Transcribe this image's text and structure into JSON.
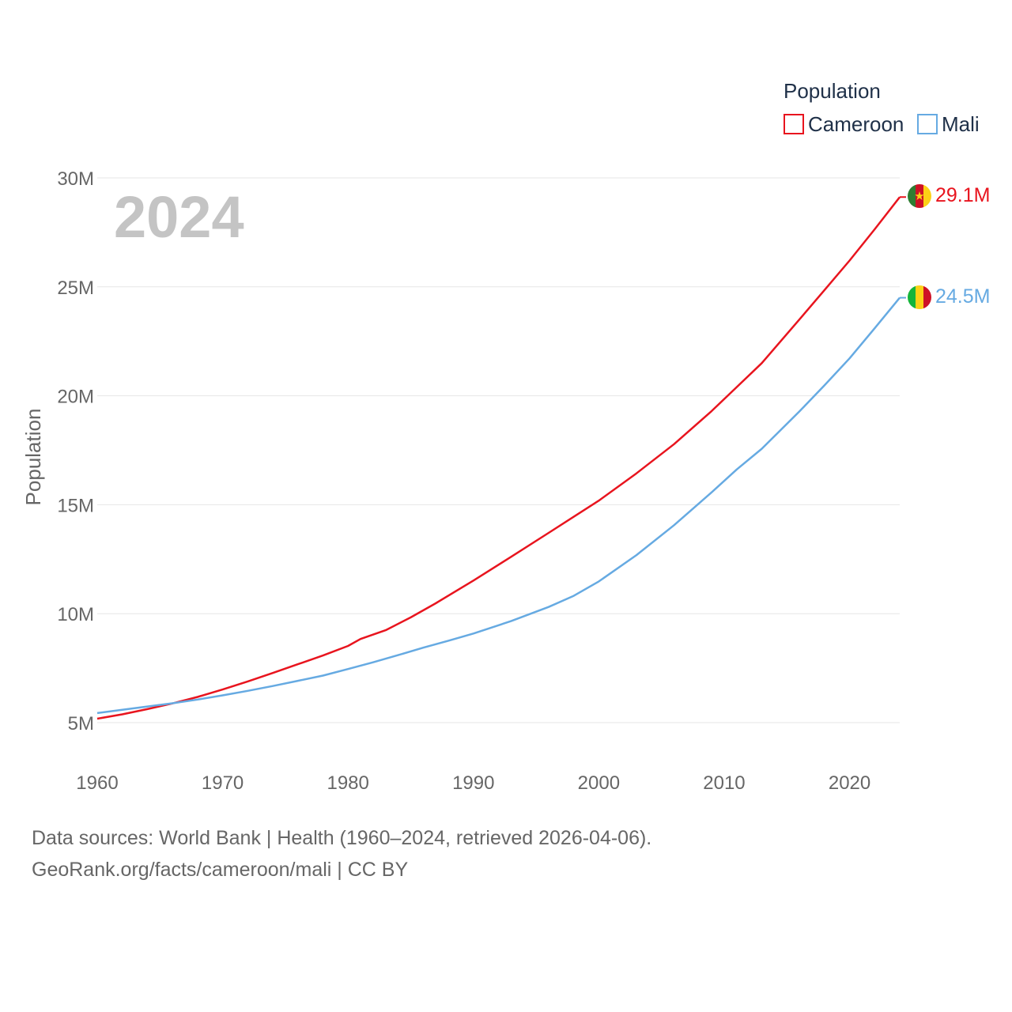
{
  "chart_data": {
    "type": "line",
    "year_label": "2024",
    "ylabel": "Population",
    "legend_title": "Population",
    "legend_position": "top-right",
    "ylim": [
      5000000,
      30000000
    ],
    "xlim": [
      1960,
      2024
    ],
    "y_ticks": [
      {
        "value": 5000000,
        "label": "5M"
      },
      {
        "value": 10000000,
        "label": "10M"
      },
      {
        "value": 15000000,
        "label": "15M"
      },
      {
        "value": 20000000,
        "label": "20M"
      },
      {
        "value": 25000000,
        "label": "25M"
      },
      {
        "value": 30000000,
        "label": "30M"
      }
    ],
    "x_ticks": [
      {
        "value": 1960,
        "label": "1960"
      },
      {
        "value": 1970,
        "label": "1970"
      },
      {
        "value": 1980,
        "label": "1980"
      },
      {
        "value": 1990,
        "label": "1990"
      },
      {
        "value": 2000,
        "label": "2000"
      },
      {
        "value": 2010,
        "label": "2010"
      },
      {
        "value": 2020,
        "label": "2020"
      }
    ],
    "series": [
      {
        "name": "Cameroon",
        "color": "#e8141e",
        "end_label": "29.1M",
        "flag": "cameroon-flag",
        "x": [
          1960,
          1962,
          1964,
          1966,
          1968,
          1970,
          1972,
          1974,
          1976,
          1978,
          1980,
          1981,
          1983,
          1985,
          1987,
          1990,
          1993,
          1996,
          1998,
          2000,
          2003,
          2006,
          2009,
          2011,
          2013,
          2016,
          2018,
          2020,
          2022,
          2024
        ],
        "values": [
          5180000,
          5380000,
          5620000,
          5880000,
          6180000,
          6520000,
          6890000,
          7280000,
          7680000,
          8080000,
          8520000,
          8840000,
          9240000,
          9830000,
          10480000,
          11520000,
          12610000,
          13710000,
          14450000,
          15190000,
          16440000,
          17780000,
          19300000,
          20400000,
          21500000,
          23500000,
          24850000,
          26210000,
          27640000,
          29120000
        ]
      },
      {
        "name": "Mali",
        "color": "#66aae2",
        "end_label": "24.5M",
        "flag": "mali-flag",
        "x": [
          1960,
          1962,
          1964,
          1966,
          1968,
          1970,
          1972,
          1974,
          1976,
          1978,
          1980,
          1982,
          1984,
          1986,
          1988,
          1990,
          1993,
          1996,
          1998,
          2000,
          2003,
          2006,
          2009,
          2011,
          2013,
          2016,
          2018,
          2020,
          2022,
          2024
        ],
        "values": [
          5440000,
          5590000,
          5740000,
          5890000,
          6060000,
          6250000,
          6460000,
          6680000,
          6920000,
          7160000,
          7460000,
          7770000,
          8100000,
          8440000,
          8760000,
          9090000,
          9660000,
          10310000,
          10820000,
          11480000,
          12690000,
          14060000,
          15570000,
          16620000,
          17570000,
          19280000,
          20480000,
          21720000,
          23100000,
          24500000
        ]
      }
    ]
  },
  "footer": {
    "line1": "Data sources: World Bank | Health (1960–2024, retrieved 2026-04-06).",
    "line2": "GeoRank.org/facts/cameroon/mali | CC BY"
  }
}
